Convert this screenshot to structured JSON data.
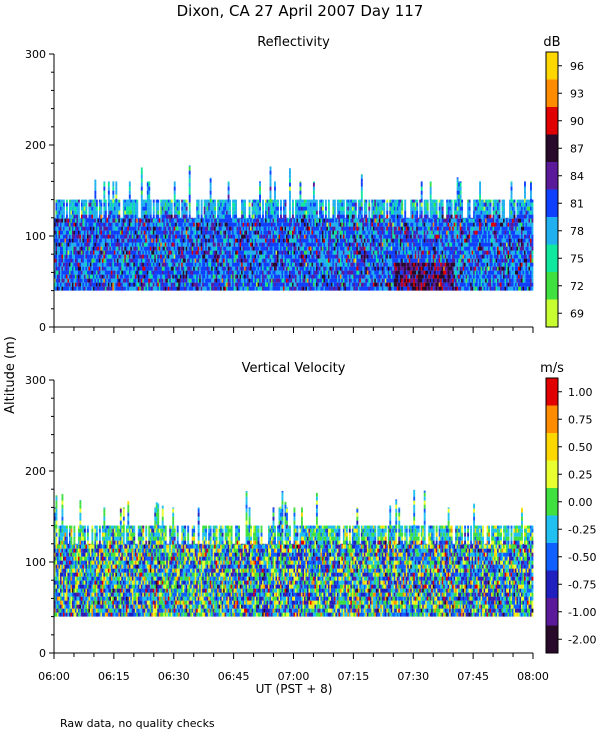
{
  "figure": {
    "title": "Dixon, CA 27 April 2007  Day 117",
    "ylabel": "Altitude (m)",
    "xlabel": "UT  (PST + 8)",
    "footnote": "Raw data, no quality checks"
  },
  "chart_data": [
    {
      "type": "heatmap",
      "title": "Reflectivity",
      "colorbar_unit": "dB",
      "x_ticks": [
        "06:00",
        "06:15",
        "06:30",
        "06:45",
        "07:00",
        "07:15",
        "07:30",
        "07:45",
        "08:00"
      ],
      "xlim": [
        "06:00",
        "08:00"
      ],
      "y_ticks": [
        0,
        100,
        200,
        300
      ],
      "ylim": [
        0,
        300
      ],
      "data_altitude_range_m": [
        40,
        140
      ],
      "occasional_echo_top_m": 180,
      "colorbar": {
        "labels": [
          "96",
          "93",
          "90",
          "87",
          "84",
          "81",
          "78",
          "75",
          "72",
          "69"
        ],
        "colors": [
          "#ffd700",
          "#ff8c00",
          "#e00000",
          "#2a0a2a",
          "#5a1a9a",
          "#1040ff",
          "#20b0f0",
          "#10e8a0",
          "#40e040",
          "#c8ff30"
        ],
        "ticks_visible": 10
      },
      "dominant_values_db": [
        78,
        81,
        84
      ],
      "peak_values_db": [
        87,
        90
      ],
      "peak_location": {
        "time_range": [
          "07:25",
          "07:40"
        ],
        "altitude_range_m": [
          40,
          70
        ]
      }
    },
    {
      "type": "heatmap",
      "title": "Vertical Velocity",
      "colorbar_unit": "m/s",
      "x_ticks": [
        "06:00",
        "06:15",
        "06:30",
        "06:45",
        "07:00",
        "07:15",
        "07:30",
        "07:45",
        "08:00"
      ],
      "xlim": [
        "06:00",
        "08:00"
      ],
      "y_ticks": [
        0,
        100,
        200,
        300
      ],
      "ylim": [
        0,
        300
      ],
      "data_altitude_range_m": [
        40,
        140
      ],
      "occasional_echo_top_m": 180,
      "colorbar": {
        "labels": [
          "1.00",
          "0.75",
          "0.50",
          "0.25",
          "0.00",
          "-0.25",
          "-0.50",
          "-0.75",
          "-1.00",
          "-2.00"
        ],
        "colors": [
          "#e00000",
          "#ff8c00",
          "#ffd700",
          "#e8ff30",
          "#40e040",
          "#20c0f0",
          "#1060ff",
          "#2020c0",
          "#5a1a9a",
          "#2a0a2a"
        ],
        "ticks_visible": 10
      },
      "dominant_values_ms": [
        -0.5,
        -0.25,
        0.0,
        0.25
      ],
      "extreme_values_ms": [
        1.0,
        -2.0
      ]
    }
  ]
}
